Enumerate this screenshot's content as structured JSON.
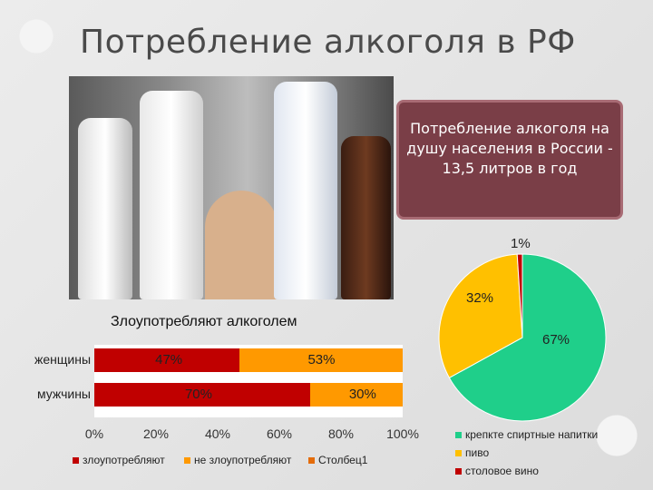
{
  "title": "Потребление алкоголя в РФ",
  "callout": "Потребление алкоголя на душу населения в России - 13,5 литров в год",
  "bar_chart": {
    "title": "Злоупотребляют алкоголем",
    "axis_ticks": [
      "0%",
      "20%",
      "40%",
      "60%",
      "80%",
      "100%"
    ],
    "legend": [
      {
        "name": "злоупотребляют",
        "color": "#c00000"
      },
      {
        "name": "не злоупотребляют",
        "color": "#ff9900"
      },
      {
        "name": "Столбец1",
        "color": "#e46c0a"
      }
    ]
  },
  "pie_chart": {
    "legend": [
      {
        "name": "крепкте спиртные напитки",
        "color": "#1fcf8a"
      },
      {
        "name": "пиво",
        "color": "#ffc000"
      },
      {
        "name": "столовое вино",
        "color": "#c00000"
      }
    ]
  },
  "chart_data": [
    {
      "type": "bar",
      "title": "Злоупотребляют алкоголем",
      "categories": [
        "женщины",
        "мужчины"
      ],
      "series": [
        {
          "name": "злоупотребляют",
          "values": [
            47,
            70
          ],
          "labels": [
            "47%",
            "70%"
          ],
          "color": "#c00000"
        },
        {
          "name": "не злоупотребляют",
          "values": [
            53,
            30
          ],
          "labels": [
            "53%",
            "30%"
          ],
          "color": "#ff9900"
        }
      ],
      "xlim": [
        0,
        100
      ],
      "stacked": true
    },
    {
      "type": "pie",
      "slices": [
        {
          "name": "крепкте спиртные напитки",
          "value": 67,
          "label": "67%",
          "color": "#1fcf8a"
        },
        {
          "name": "пиво",
          "value": 32,
          "label": "32%",
          "color": "#ffc000"
        },
        {
          "name": "столовое вино",
          "value": 1,
          "label": "1%",
          "color": "#c00000"
        }
      ],
      "legend_position": "bottom"
    }
  ]
}
